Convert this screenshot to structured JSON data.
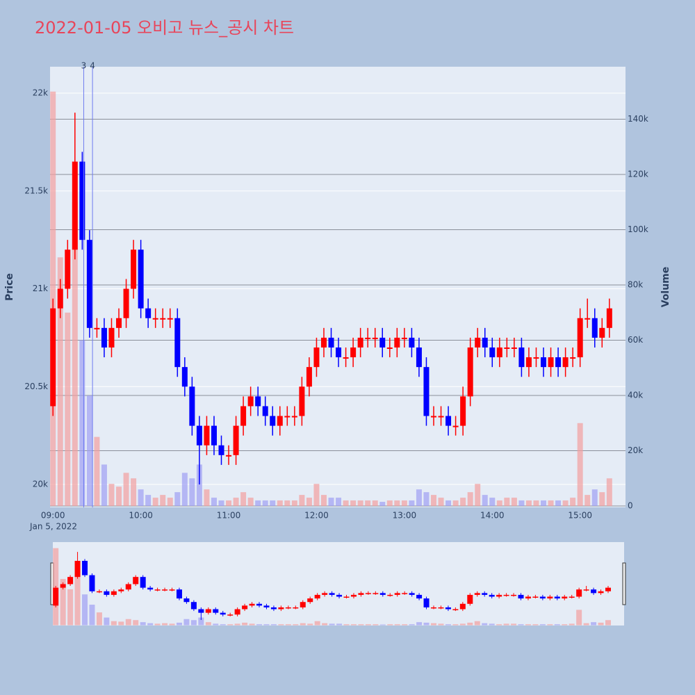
{
  "chart_data": {
    "type": "candlestick",
    "title": "2022-01-05 오비고 뉴스_공시 차트",
    "y_label": "Price",
    "y2_label": "Volume",
    "x_date_label": "Jan 5, 2022",
    "increasing_color": "#ff0000",
    "decreasing_color": "#0000ff",
    "x": [
      "09:00",
      "09:05",
      "09:10",
      "09:15",
      "09:20",
      "09:25",
      "09:30",
      "09:35",
      "09:40",
      "09:45",
      "09:50",
      "09:55",
      "10:00",
      "10:05",
      "10:10",
      "10:15",
      "10:20",
      "10:25",
      "10:30",
      "10:35",
      "10:40",
      "10:45",
      "10:50",
      "10:55",
      "11:00",
      "11:05",
      "11:10",
      "11:15",
      "11:20",
      "11:25",
      "11:30",
      "11:35",
      "11:40",
      "11:45",
      "11:50",
      "11:55",
      "12:00",
      "12:05",
      "12:10",
      "12:15",
      "12:20",
      "12:25",
      "12:30",
      "12:35",
      "12:40",
      "12:45",
      "12:50",
      "12:55",
      "13:00",
      "13:05",
      "13:10",
      "13:15",
      "13:20",
      "13:25",
      "13:30",
      "13:35",
      "13:40",
      "13:45",
      "13:50",
      "13:55",
      "14:00",
      "14:05",
      "14:10",
      "14:15",
      "14:20",
      "14:25",
      "14:30",
      "14:35",
      "14:40",
      "14:45",
      "14:50",
      "14:55",
      "15:00",
      "15:05",
      "15:10",
      "15:15",
      "15:20"
    ],
    "open": [
      20400,
      20900,
      21000,
      21200,
      21650,
      21250,
      20800,
      20800,
      20700,
      20800,
      20850,
      21000,
      21200,
      20900,
      20850,
      20850,
      20850,
      20850,
      20600,
      20500,
      20300,
      20200,
      20300,
      20200,
      20150,
      20150,
      20300,
      20400,
      20450,
      20400,
      20350,
      20300,
      20350,
      20350,
      20350,
      20500,
      20600,
      20700,
      20750,
      20700,
      20650,
      20650,
      20700,
      20750,
      20750,
      20750,
      20700,
      20700,
      20750,
      20750,
      20700,
      20600,
      20350,
      20350,
      20350,
      20300,
      20300,
      20450,
      20700,
      20750,
      20700,
      20650,
      20700,
      20700,
      20700,
      20600,
      20650,
      20650,
      20600,
      20650,
      20600,
      20650,
      20650,
      20850,
      20850,
      20750,
      20800
    ],
    "high": [
      20950,
      21050,
      21250,
      21900,
      21700,
      21300,
      20850,
      20850,
      20850,
      20900,
      21050,
      21250,
      21250,
      20950,
      20900,
      20900,
      20900,
      20900,
      20650,
      20550,
      20350,
      20350,
      20350,
      20250,
      20200,
      20350,
      20450,
      20500,
      20500,
      20450,
      20400,
      20400,
      20400,
      20400,
      20550,
      20650,
      20750,
      20800,
      20800,
      20750,
      20700,
      20750,
      20800,
      20800,
      20800,
      20800,
      20750,
      20800,
      20800,
      20800,
      20750,
      20650,
      20400,
      20400,
      20400,
      20350,
      20500,
      20750,
      20800,
      20800,
      20750,
      20750,
      20750,
      20750,
      20750,
      20700,
      20700,
      20700,
      20700,
      20700,
      20700,
      20700,
      20900,
      20950,
      20900,
      20850,
      20950
    ],
    "low": [
      20350,
      20850,
      20950,
      21150,
      21200,
      20750,
      20750,
      20650,
      20650,
      20750,
      20800,
      20950,
      20850,
      20800,
      20800,
      20800,
      20800,
      20550,
      20450,
      20250,
      20000,
      20150,
      20150,
      20100,
      20100,
      20100,
      20250,
      20350,
      20350,
      20300,
      20250,
      20250,
      20300,
      20300,
      20300,
      20450,
      20550,
      20650,
      20650,
      20600,
      20600,
      20600,
      20650,
      20700,
      20700,
      20650,
      20650,
      20650,
      20700,
      20650,
      20550,
      20300,
      20300,
      20300,
      20250,
      20250,
      20250,
      20400,
      20650,
      20650,
      20600,
      20600,
      20650,
      20650,
      20550,
      20550,
      20600,
      20550,
      20550,
      20550,
      20550,
      20600,
      20600,
      20800,
      20700,
      20700,
      20750
    ],
    "close": [
      20900,
      21000,
      21200,
      21650,
      21250,
      20800,
      20800,
      20700,
      20800,
      20850,
      21000,
      21200,
      20900,
      20850,
      20850,
      20850,
      20850,
      20600,
      20500,
      20300,
      20200,
      20300,
      20200,
      20150,
      20150,
      20300,
      20400,
      20450,
      20400,
      20350,
      20300,
      20350,
      20350,
      20350,
      20500,
      20600,
      20700,
      20750,
      20700,
      20650,
      20650,
      20700,
      20750,
      20750,
      20750,
      20700,
      20700,
      20750,
      20750,
      20700,
      20600,
      20350,
      20350,
      20350,
      20300,
      20300,
      20450,
      20700,
      20750,
      20700,
      20650,
      20700,
      20700,
      20700,
      20600,
      20650,
      20650,
      20600,
      20650,
      20600,
      20650,
      20650,
      20850,
      20850,
      20750,
      20800,
      20900
    ],
    "volume": [
      150000,
      90000,
      70000,
      110000,
      60000,
      40000,
      25000,
      15000,
      8000,
      7000,
      12000,
      10000,
      6000,
      4000,
      3000,
      4000,
      3000,
      5000,
      12000,
      10000,
      15000,
      6000,
      3000,
      2000,
      2000,
      3000,
      5000,
      3000,
      2000,
      2000,
      2000,
      2000,
      2000,
      2000,
      4000,
      3000,
      8000,
      4000,
      3000,
      3000,
      2000,
      2000,
      2000,
      2000,
      2000,
      1500,
      2000,
      2000,
      2000,
      2000,
      6000,
      5000,
      4000,
      3000,
      2000,
      2000,
      3000,
      5000,
      8000,
      4000,
      3000,
      2000,
      3000,
      3000,
      2000,
      2000,
      2000,
      2000,
      2000,
      2000,
      2000,
      3000,
      30000,
      4000,
      6000,
      5000,
      10000
    ],
    "annotations": [
      {
        "x": "09:21",
        "text": "3"
      },
      {
        "x": "09:27",
        "text": "4"
      }
    ],
    "xlim": [
      "08:58",
      "15:31"
    ],
    "xticks": [
      "09:00",
      "10:00",
      "11:00",
      "12:00",
      "13:00",
      "14:00",
      "15:00"
    ],
    "ylim": [
      19883,
      22135
    ],
    "yticks": [
      {
        "value": 20000,
        "label": "20k"
      },
      {
        "value": 20500,
        "label": "20.5k"
      },
      {
        "value": 21000,
        "label": "21k"
      },
      {
        "value": 21500,
        "label": "21.5k"
      },
      {
        "value": 22000,
        "label": "22k"
      }
    ],
    "y2lim": [
      -500,
      159000
    ],
    "y2ticks": [
      0,
      {
        "value": 20000,
        "label": "20k"
      },
      {
        "value": 40000,
        "label": "40k"
      },
      {
        "value": 60000,
        "label": "60k"
      },
      {
        "value": 80000,
        "label": "80k"
      },
      {
        "value": 100000,
        "label": "100k"
      },
      {
        "value": 120000,
        "label": "120k"
      },
      {
        "value": 140000,
        "label": "140k"
      }
    ],
    "grid": true
  }
}
